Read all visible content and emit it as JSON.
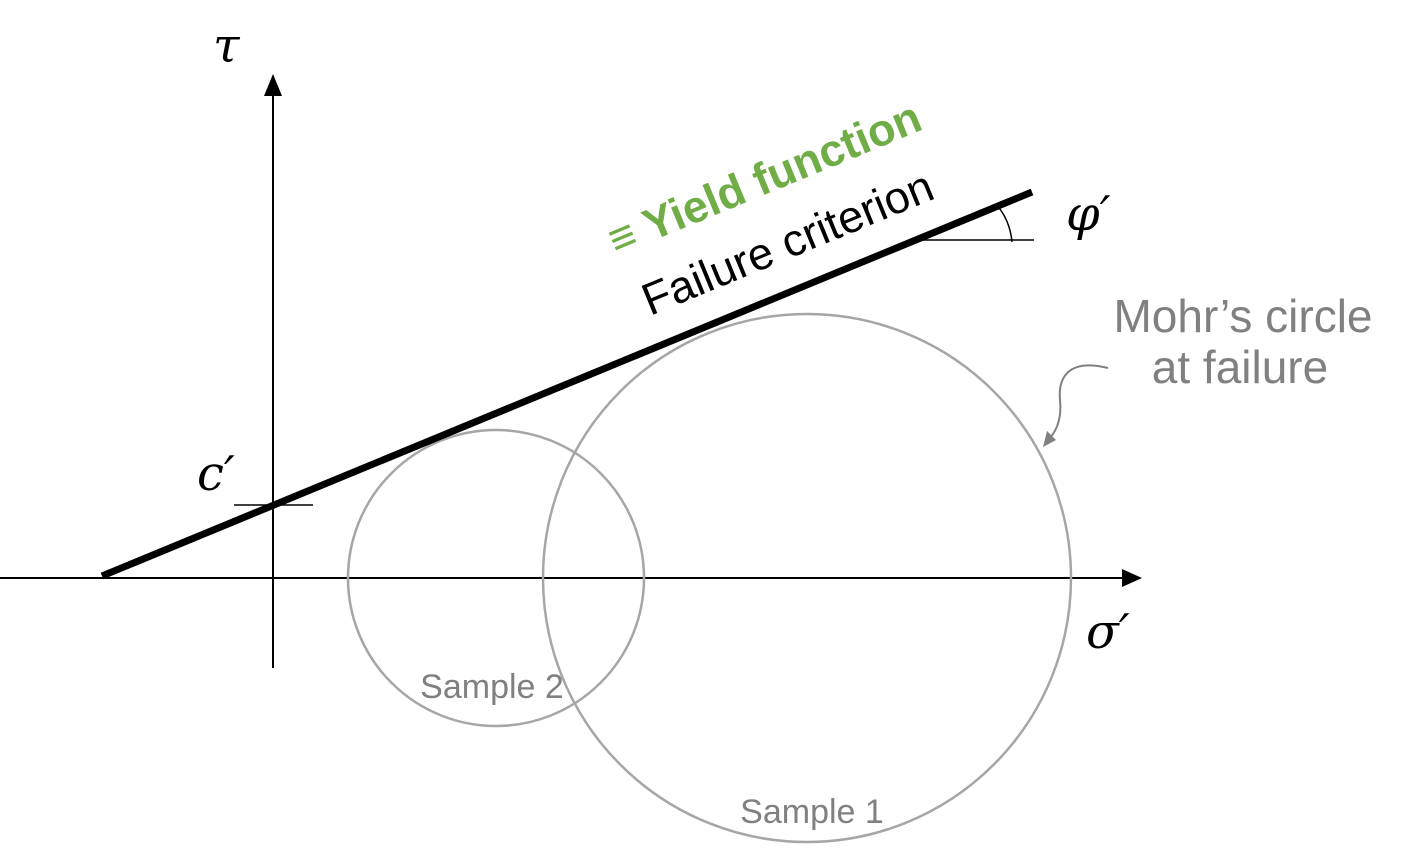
{
  "axes": {
    "y_label": "τ",
    "x_label": "σ′"
  },
  "labels": {
    "cohesion": "c′",
    "friction_angle": "φ′",
    "failure_criterion": "Failure criterion",
    "yield_function": "≡ Yield function",
    "mohr_line1": "Mohr’s circle",
    "mohr_line2": "at failure"
  },
  "circles": {
    "sample1": "Sample 1",
    "sample2": "Sample 2"
  },
  "colors": {
    "line": "#000000",
    "circle": "#a6a6a6",
    "yield": "#70ad47",
    "gray_text": "#808080"
  }
}
